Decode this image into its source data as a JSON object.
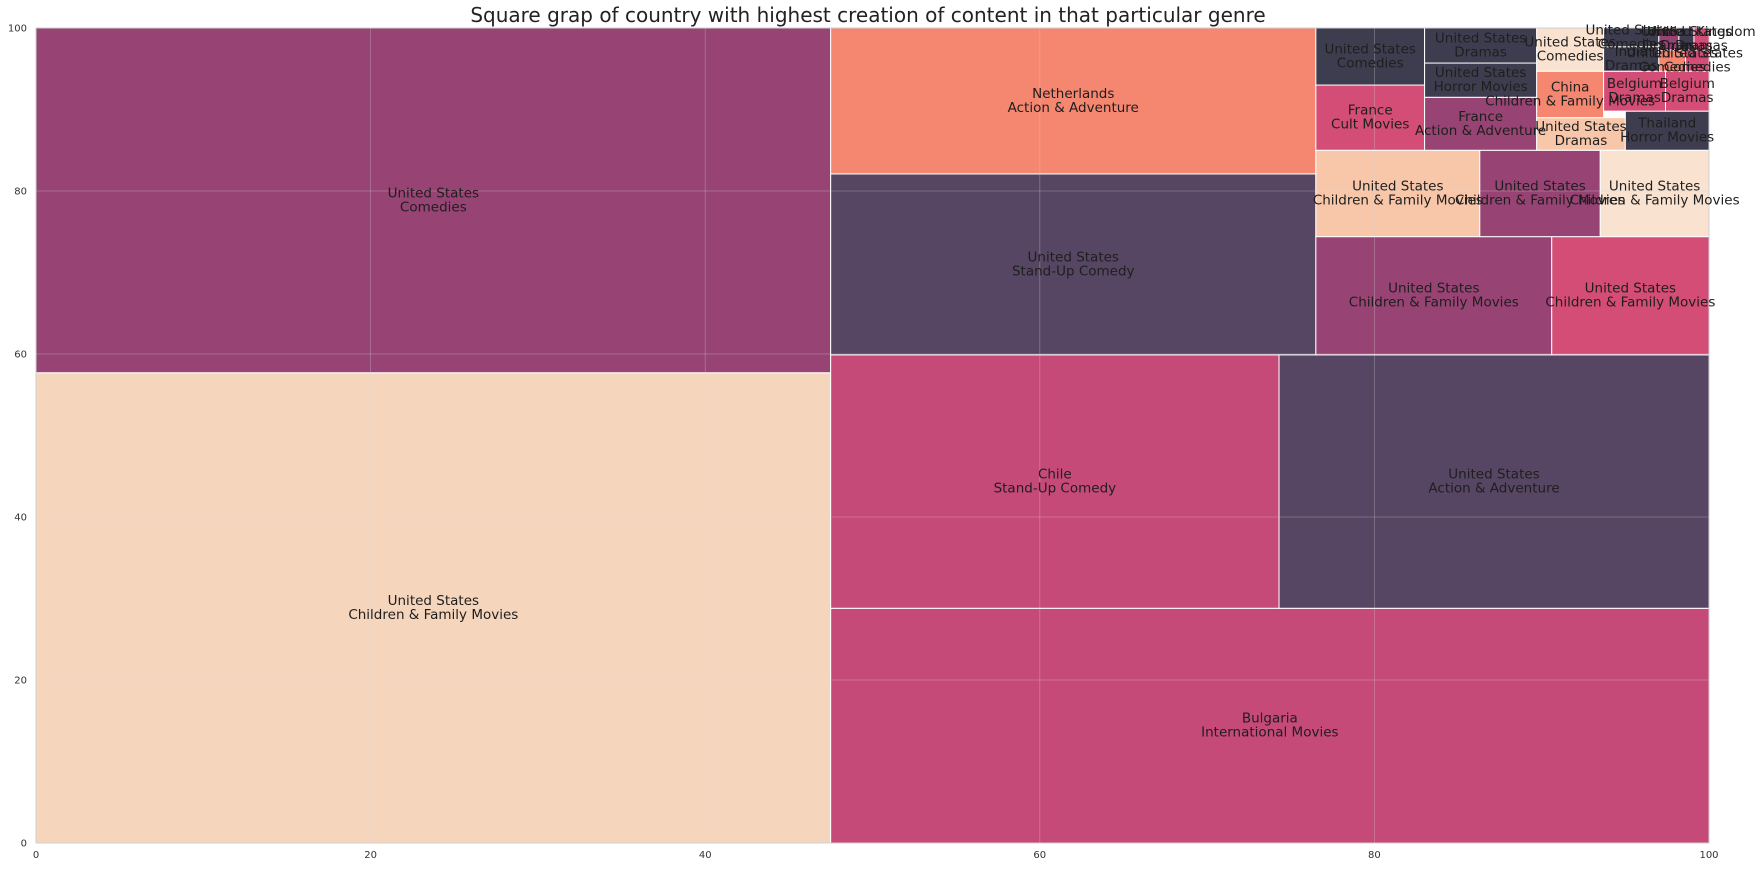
{
  "chart_data": {
    "type": "treemap",
    "title": "Square grap of country with highest creation of content in that particular genre",
    "xlabel": "",
    "ylabel": "",
    "xlim": [
      0,
      100
    ],
    "ylim": [
      0,
      100
    ],
    "xticks": [
      0,
      20,
      40,
      60,
      80,
      100
    ],
    "yticks": [
      0,
      20,
      40,
      60,
      80,
      100
    ],
    "grid": true,
    "colors": {
      "peach": "#f5d1b7",
      "plum": "#8e3468",
      "raspberry": "#c13b6b",
      "aubergine": "#493656",
      "coral": "#f47c64",
      "charcoal": "#2e2d40",
      "light_peach": "#f7c2a3",
      "cream": "#f9e0cc",
      "pink": "#d03e6b"
    },
    "rects": [
      {
        "x": 0,
        "y": 0,
        "dx": 47.5,
        "dy": 57.7,
        "color": "peach",
        "country": "United States",
        "genre": "Children & Family Movies"
      },
      {
        "x": 0,
        "y": 57.7,
        "dx": 47.5,
        "dy": 42.3,
        "color": "plum",
        "country": "United States",
        "genre": "Comedies"
      },
      {
        "x": 47.5,
        "y": 0,
        "dx": 52.5,
        "dy": 28.8,
        "color": "raspberry",
        "country": "Bulgaria",
        "genre": "International Movies"
      },
      {
        "x": 47.5,
        "y": 28.8,
        "dx": 26.8,
        "dy": 31.1,
        "color": "raspberry",
        "country": "Chile",
        "genre": "Stand-Up Comedy"
      },
      {
        "x": 74.3,
        "y": 28.8,
        "dx": 25.7,
        "dy": 31.1,
        "color": "aubergine",
        "country": "United States",
        "genre": "Action & Adventure"
      },
      {
        "x": 47.5,
        "y": 59.9,
        "dx": 29.0,
        "dy": 22.2,
        "color": "aubergine",
        "country": "United States",
        "genre": "Stand-Up Comedy"
      },
      {
        "x": 47.5,
        "y": 82.1,
        "dx": 29.0,
        "dy": 17.9,
        "color": "coral",
        "country": "Netherlands",
        "genre": "Action & Adventure"
      },
      {
        "x": 76.5,
        "y": 59.9,
        "dx": 14.1,
        "dy": 14.5,
        "color": "plum",
        "country": "United States",
        "genre": "Children & Family Movies"
      },
      {
        "x": 90.6,
        "y": 59.9,
        "dx": 9.4,
        "dy": 14.5,
        "color": "pink",
        "country": "United States",
        "genre": "Children & Family Movies"
      },
      {
        "x": 76.5,
        "y": 74.4,
        "dx": 9.8,
        "dy": 10.6,
        "color": "light_peach",
        "country": "United States",
        "genre": "Children & Family Movies"
      },
      {
        "x": 86.3,
        "y": 74.4,
        "dx": 7.2,
        "dy": 10.6,
        "color": "plum",
        "country": "United States",
        "genre": "Children & Family Movies"
      },
      {
        "x": 93.5,
        "y": 74.4,
        "dx": 6.5,
        "dy": 10.6,
        "color": "cream",
        "country": "United States",
        "genre": "Children & Family Movies"
      },
      {
        "x": 76.5,
        "y": 85.0,
        "dx": 6.5,
        "dy": 8.0,
        "color": "pink",
        "country": "France",
        "genre": "Cult Movies"
      },
      {
        "x": 83.0,
        "y": 85.0,
        "dx": 6.7,
        "dy": 6.5,
        "color": "plum",
        "country": "France",
        "genre": "Action & Adventure"
      },
      {
        "x": 76.5,
        "y": 93.0,
        "dx": 6.5,
        "dy": 7.0,
        "color": "charcoal",
        "country": "United States",
        "genre": "Comedies"
      },
      {
        "x": 83.0,
        "y": 91.5,
        "dx": 6.7,
        "dy": 4.2,
        "color": "charcoal",
        "country": "United States",
        "genre": "Horror Movies"
      },
      {
        "x": 83.0,
        "y": 95.7,
        "dx": 6.7,
        "dy": 4.3,
        "color": "charcoal",
        "country": "United States",
        "genre": "Dramas"
      },
      {
        "x": 89.7,
        "y": 85.0,
        "dx": 5.3,
        "dy": 4.0,
        "color": "light_peach",
        "country": "United States",
        "genre": "Dramas"
      },
      {
        "x": 95.0,
        "y": 85.0,
        "dx": 5.0,
        "dy": 4.8,
        "color": "charcoal",
        "country": "Thailand",
        "genre": "Horror Movies"
      },
      {
        "x": 89.7,
        "y": 89.0,
        "dx": 4.0,
        "dy": 5.7,
        "color": "coral",
        "country": "China",
        "genre": "Children & Family Movies"
      },
      {
        "x": 93.7,
        "y": 89.8,
        "dx": 3.7,
        "dy": 4.9,
        "color": "pink",
        "country": "Belgium",
        "genre": "Dramas"
      },
      {
        "x": 97.4,
        "y": 89.8,
        "dx": 2.6,
        "dy": 4.9,
        "color": "pink",
        "country": "Belgium",
        "genre": "Dramas"
      },
      {
        "x": 89.7,
        "y": 94.7,
        "dx": 4.0,
        "dy": 5.3,
        "color": "cream",
        "country": "United States",
        "genre": "Comedies"
      },
      {
        "x": 93.7,
        "y": 94.7,
        "dx": 3.3,
        "dy": 3.0,
        "color": "charcoal",
        "country": "India",
        "genre": "Dramas"
      },
      {
        "x": 93.7,
        "y": 97.7,
        "dx": 3.3,
        "dy": 2.3,
        "color": "charcoal",
        "country": "United States",
        "genre": "Comedies"
      },
      {
        "x": 97.0,
        "y": 94.7,
        "dx": 1.6,
        "dy": 2.6,
        "color": "coral",
        "country": "United States",
        "genre": "Comedies"
      },
      {
        "x": 98.6,
        "y": 94.7,
        "dx": 1.4,
        "dy": 2.6,
        "color": "pink",
        "country": "United States",
        "genre": "Comedies"
      },
      {
        "x": 97.0,
        "y": 97.3,
        "dx": 1.2,
        "dy": 2.7,
        "color": "plum",
        "country": "India",
        "genre": "Dramas"
      },
      {
        "x": 98.2,
        "y": 97.3,
        "dx": 0.9,
        "dy": 2.7,
        "color": "charcoal",
        "country": "United States",
        "genre": "Dramas"
      },
      {
        "x": 99.1,
        "y": 97.3,
        "dx": 0.9,
        "dy": 2.7,
        "color": "pink",
        "country": "United Kingdom",
        "genre": "Dramas"
      }
    ]
  }
}
